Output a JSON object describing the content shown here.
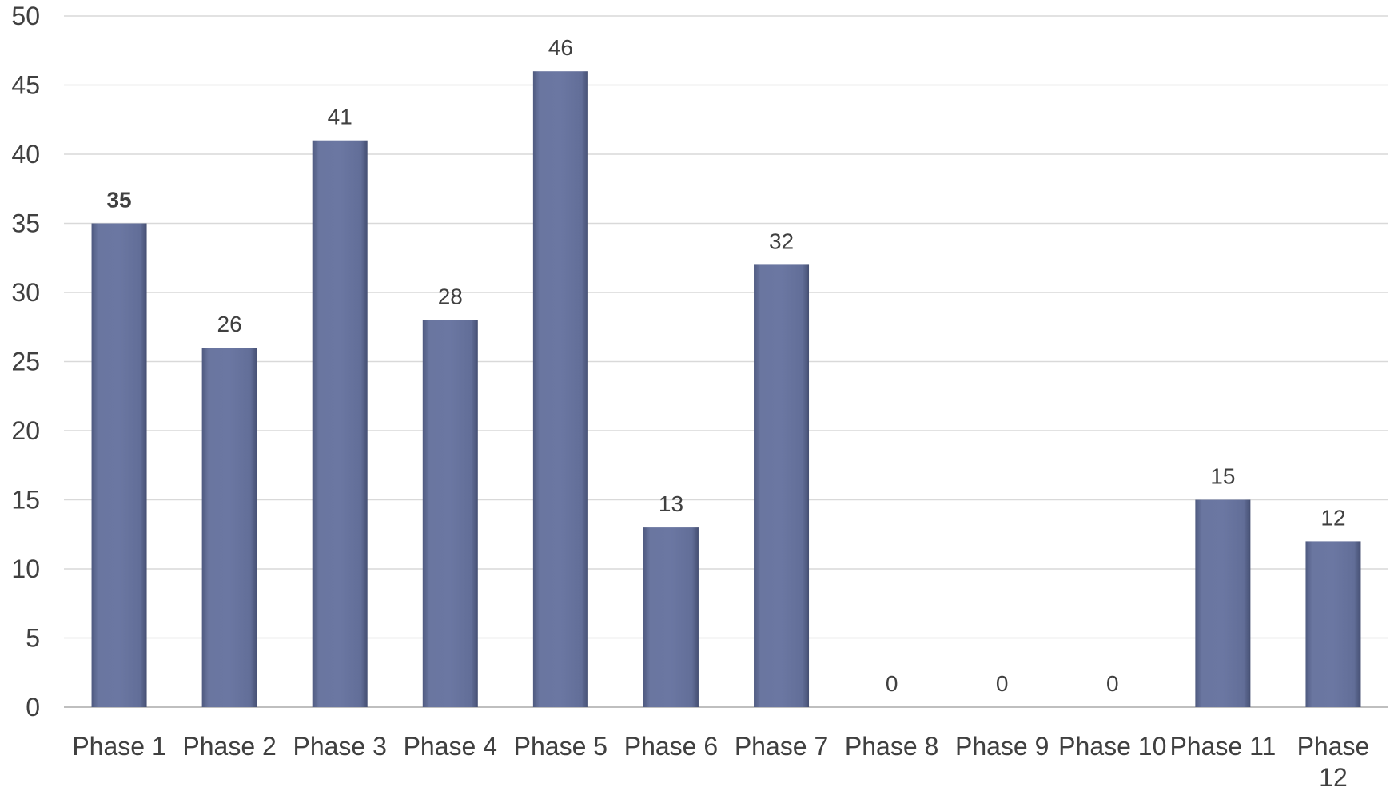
{
  "chart_data": {
    "type": "bar",
    "title": "",
    "xlabel": "",
    "ylabel": "",
    "ylim": [
      0,
      50
    ],
    "y_ticks": [
      0,
      5,
      10,
      15,
      20,
      25,
      30,
      35,
      40,
      45,
      50
    ],
    "grid": true,
    "legend": "none",
    "bar_color": "#64709b",
    "categories": [
      "Phase 1",
      "Phase 2",
      "Phase 3",
      "Phase 4",
      "Phase 5",
      "Phase 6",
      "Phase 7",
      "Phase 8",
      "Phase 9",
      "Phase 10",
      "Phase 11",
      "Phase 12"
    ],
    "values": [
      35,
      26,
      41,
      28,
      46,
      13,
      32,
      0,
      0,
      0,
      15,
      12
    ],
    "data_labels": [
      "35",
      "26",
      "41",
      "28",
      "46",
      "13",
      "32",
      "0",
      "0",
      "0",
      "15",
      "12"
    ],
    "bold_labels": [
      "Phase 1"
    ]
  }
}
